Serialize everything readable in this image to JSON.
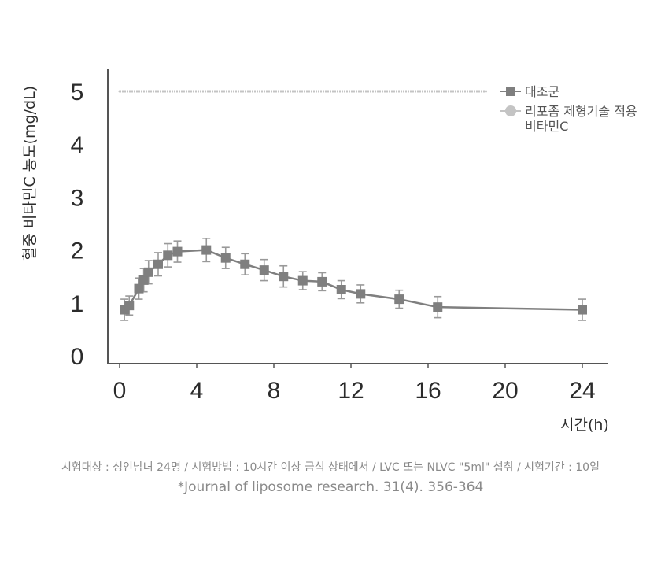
{
  "chart_data": {
    "type": "line",
    "ylabel": "혈중 비타민C 농도(mg/dL)",
    "xlabel": "시간(h)",
    "xlim": [
      0,
      24
    ],
    "ylim": [
      0,
      5
    ],
    "x_ticks": [
      "0",
      "4",
      "8",
      "12",
      "16",
      "20",
      "24"
    ],
    "y_ticks": [
      "0",
      "1",
      "2",
      "3",
      "4",
      "5"
    ],
    "grid": false,
    "legend_position": "top-right",
    "colors": {
      "control": "#7f7f7f",
      "liposome": "#c4c4c4",
      "axis": "#555555",
      "error": "#999999"
    },
    "series": [
      {
        "name": "대조군",
        "marker": "square",
        "points": [
          {
            "x": 0.25,
            "y": 0.87,
            "err": 0.2
          },
          {
            "x": 0.5,
            "y": 0.95,
            "err": 0.18
          },
          {
            "x": 1.0,
            "y": 1.27,
            "err": 0.2
          },
          {
            "x": 1.25,
            "y": 1.43,
            "err": 0.22
          },
          {
            "x": 1.5,
            "y": 1.58,
            "err": 0.22
          },
          {
            "x": 2.0,
            "y": 1.73,
            "err": 0.22
          },
          {
            "x": 2.5,
            "y": 1.9,
            "err": 0.22
          },
          {
            "x": 3.0,
            "y": 1.97,
            "err": 0.2
          },
          {
            "x": 4.5,
            "y": 2.0,
            "err": 0.22
          },
          {
            "x": 5.5,
            "y": 1.85,
            "err": 0.2
          },
          {
            "x": 6.5,
            "y": 1.73,
            "err": 0.2
          },
          {
            "x": 7.5,
            "y": 1.62,
            "err": 0.2
          },
          {
            "x": 8.5,
            "y": 1.5,
            "err": 0.2
          },
          {
            "x": 9.5,
            "y": 1.42,
            "err": 0.17
          },
          {
            "x": 10.5,
            "y": 1.4,
            "err": 0.17
          },
          {
            "x": 11.5,
            "y": 1.25,
            "err": 0.17
          },
          {
            "x": 12.5,
            "y": 1.17,
            "err": 0.17
          },
          {
            "x": 14.5,
            "y": 1.07,
            "err": 0.17
          },
          {
            "x": 16.5,
            "y": 0.92,
            "err": 0.2
          },
          {
            "x": 24.0,
            "y": 0.87,
            "err": 0.2
          }
        ]
      },
      {
        "name": "리포좀 제형기술 적용 비타민C",
        "marker": "circle",
        "points": [
          {
            "x": 0.0,
            "y": 5.0
          },
          {
            "x": 19.0,
            "y": 5.0
          }
        ]
      }
    ]
  },
  "legend": {
    "control_label": "대조군",
    "liposome_label_line1": "리포좀 제형기술 적용",
    "liposome_label_line2": "비타민C"
  },
  "caption": {
    "line1": "시험대상 : 성인남녀 24명  /  시험방법 : 10시간 이상 금식 상태에서  /  LVC 또는 NLVC \"5ml\" 섭취  /  시험기간 : 10일",
    "line2": "*Journal of liposome research. 31(4). 356-364"
  }
}
